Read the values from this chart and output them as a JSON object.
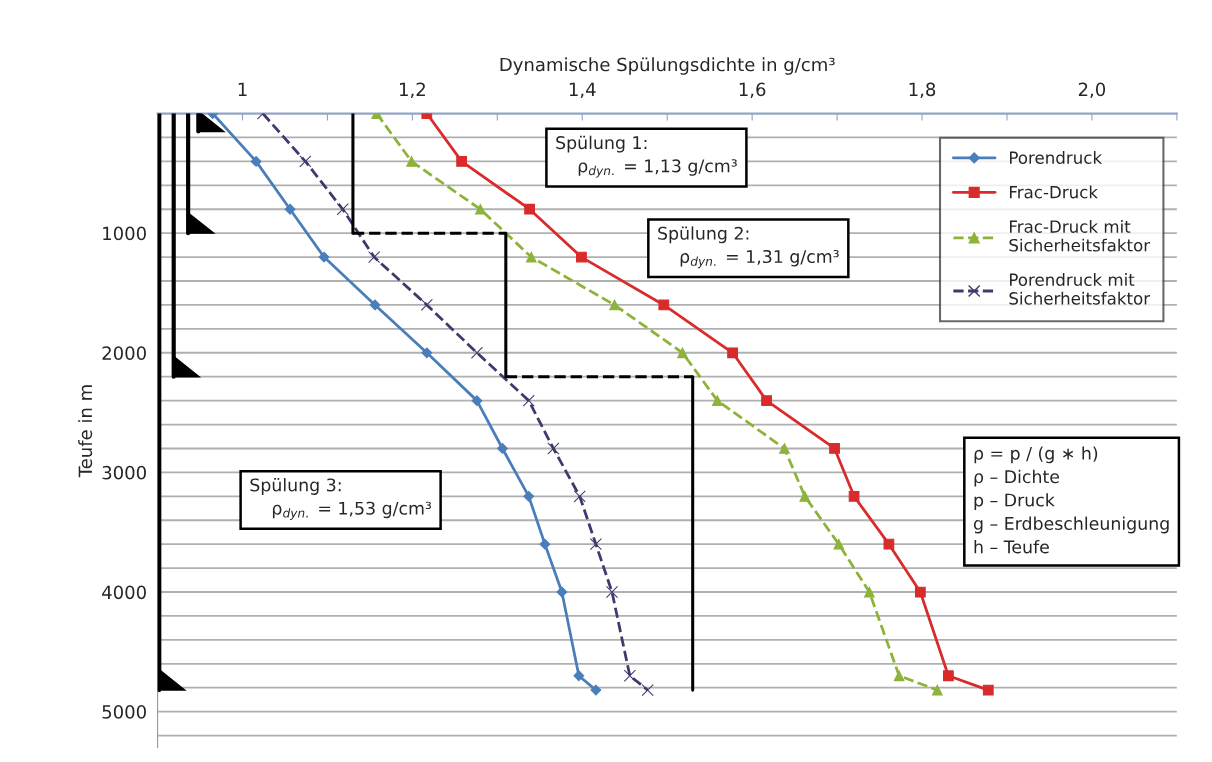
{
  "chart_data": {
    "type": "line",
    "xlabel": "Dynamische Spülungsdichte in g/cm³",
    "ylabel": "Teufe in m",
    "xlim": [
      0.9,
      2.1
    ],
    "xticks": [
      {
        "value": 0.9,
        "label": null
      },
      {
        "value": 1.0,
        "label": "1"
      },
      {
        "value": 1.1,
        "label": null
      },
      {
        "value": 1.2,
        "label": "1,2"
      },
      {
        "value": 1.3,
        "label": null
      },
      {
        "value": 1.4,
        "label": "1,4"
      },
      {
        "value": 1.5,
        "label": null
      },
      {
        "value": 1.6,
        "label": "1,6"
      },
      {
        "value": 1.7,
        "label": null
      },
      {
        "value": 1.8,
        "label": "1,8"
      },
      {
        "value": 1.9,
        "label": null
      },
      {
        "value": 2.0,
        "label": "2,0"
      },
      {
        "value": 2.1,
        "label": null
      }
    ],
    "ylim": [
      5300,
      0
    ],
    "yticks": [
      {
        "value": 0,
        "label": null
      },
      {
        "value": 200,
        "label": null
      },
      {
        "value": 400,
        "label": null
      },
      {
        "value": 600,
        "label": null
      },
      {
        "value": 800,
        "label": null
      },
      1000,
      {
        "value": 1200,
        "label": null
      },
      {
        "value": 1400,
        "label": null
      },
      {
        "value": 1600,
        "label": null
      },
      {
        "value": 1800,
        "label": null
      },
      2000,
      {
        "value": 2200,
        "label": null
      },
      {
        "value": 2400,
        "label": null
      },
      {
        "value": 2600,
        "label": null
      },
      {
        "value": 2800,
        "label": null
      },
      3000,
      {
        "value": 3200,
        "label": null
      },
      {
        "value": 3400,
        "label": null
      },
      {
        "value": 3600,
        "label": null
      },
      {
        "value": 3800,
        "label": null
      },
      4000,
      {
        "value": 4200,
        "label": null
      },
      {
        "value": 4400,
        "label": null
      },
      {
        "value": 4600,
        "label": null
      },
      {
        "value": 4800,
        "label": null
      },
      5000,
      {
        "value": 5200,
        "label": null
      }
    ],
    "grid": "y",
    "legend": "top right",
    "series": [
      {
        "name": "Porendruck",
        "color": "#4a7ebb",
        "marker": "diamond",
        "line_style": "solid",
        "x": [
          0.965,
          1.016,
          1.056,
          1.096,
          1.156,
          1.217,
          1.276,
          1.306,
          1.337,
          1.356,
          1.376,
          1.396,
          1.416
        ],
        "values": [
          0,
          400,
          800,
          1200,
          1600,
          2000,
          2400,
          2800,
          3200,
          3600,
          4000,
          4700,
          4820
        ]
      },
      {
        "name": "Frac-Druck",
        "color": "#d92b2b",
        "marker": "square",
        "line_style": "solid",
        "x": [
          1.217,
          1.258,
          1.338,
          1.399,
          1.496,
          1.577,
          1.617,
          1.697,
          1.72,
          1.761,
          1.798,
          1.831,
          1.878
        ],
        "values": [
          0,
          400,
          800,
          1200,
          1600,
          2000,
          2400,
          2800,
          3200,
          3600,
          4000,
          4700,
          4820
        ]
      },
      {
        "name": "Frac-Druck mit\nSicherheitsfaktor",
        "color": "#8db33a",
        "marker": "triangle",
        "line_style": "dashed",
        "x": [
          1.158,
          1.199,
          1.28,
          1.34,
          1.438,
          1.518,
          1.559,
          1.638,
          1.662,
          1.702,
          1.738,
          1.773,
          1.818
        ],
        "values": [
          0,
          400,
          800,
          1200,
          1600,
          2000,
          2400,
          2800,
          3200,
          3600,
          4000,
          4700,
          4820
        ]
      },
      {
        "name": "Porendruck mit\nSicherheitsfaktor",
        "color": "#3f3a6e",
        "marker": "cross",
        "line_style": "dashed",
        "x": [
          1.024,
          1.074,
          1.118,
          1.155,
          1.217,
          1.276,
          1.337,
          1.366,
          1.397,
          1.416,
          1.435,
          1.456,
          1.477
        ],
        "values": [
          0,
          400,
          800,
          1200,
          1600,
          2000,
          2400,
          2800,
          3200,
          3600,
          4000,
          4700,
          4820
        ]
      },
      {
        "color": "#000000",
        "line_style": "solid",
        "x": [
          1.13,
          1.13
        ],
        "values": [
          0,
          1000
        ]
      },
      {
        "color": "#000000",
        "line_style": "dashed",
        "x": [
          1.13,
          1.31
        ],
        "values": [
          1000,
          1000
        ]
      },
      {
        "color": "#000000",
        "line_style": "solid",
        "x": [
          1.31,
          1.31
        ],
        "values": [
          1000,
          2200
        ]
      },
      {
        "color": "#000000",
        "line_style": "dashed",
        "x": [
          1.31,
          1.53
        ],
        "values": [
          2200,
          2200
        ]
      },
      {
        "color": "#000000",
        "line_style": "solid",
        "x": [
          1.53,
          1.53
        ],
        "values": [
          2200,
          4820
        ]
      },
      {
        "color": "#000000",
        "line_style": "solid",
        "x": [
          0.948,
          0.948
        ],
        "values": [
          0,
          150
        ]
      },
      {
        "color": "#000000",
        "line_style": "solid",
        "x": [
          0.936,
          0.936
        ],
        "values": [
          0,
          1000
        ]
      },
      {
        "color": "#000000",
        "line_style": "solid",
        "x": [
          0.919,
          0.919
        ],
        "values": [
          0,
          2200
        ]
      },
      {
        "color": "#000000",
        "line_style": "solid",
        "x": [
          0.902,
          0.902
        ],
        "values": [
          0,
          4820
        ]
      }
    ],
    "annotations": [
      "Spülung 1:\n    ρ$_{dyn.}$ = 1,13 g/cm³",
      "Spülung 2:\n    ρ$_{dyn.}$ = 1,31 g/cm³",
      "Spülung 3:\n    ρ$_{dyn.}$ = 1,53 g/cm³",
      "ρ = p / (g ∗ h)\nρ – Dichte\np – Druck\ng – Erdbeschleunigung\nh – Teufe"
    ]
  }
}
